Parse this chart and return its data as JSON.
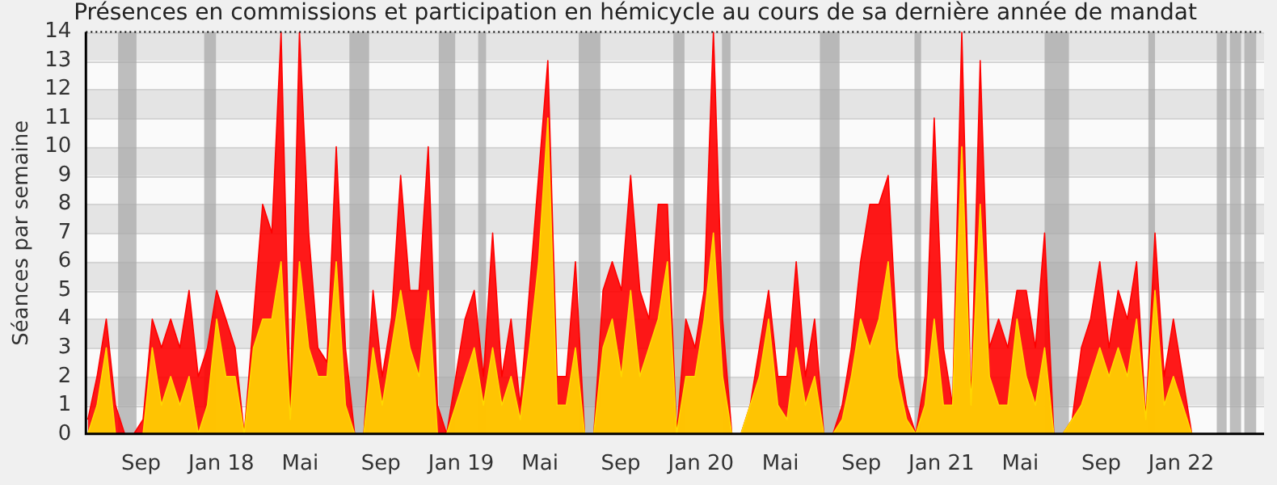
{
  "chart_data": {
    "type": "area",
    "title": "Présences en commissions et participation en hémicycle au cours de sa dernière année de mandat",
    "ylabel": "Séances par semaine",
    "x": [
      "2017-06-12",
      "2017-06-26",
      "2017-07-10",
      "2017-07-24",
      "2017-08-07",
      "2017-08-21",
      "2017-09-04",
      "2017-09-18",
      "2017-10-02",
      "2017-10-16",
      "2017-10-30",
      "2017-11-13",
      "2017-11-27",
      "2017-12-11",
      "2017-12-25",
      "2018-01-08",
      "2018-01-22",
      "2018-02-05",
      "2018-02-19",
      "2018-03-05",
      "2018-03-19",
      "2018-04-02",
      "2018-04-16",
      "2018-04-30",
      "2018-05-14",
      "2018-05-28",
      "2018-06-11",
      "2018-06-25",
      "2018-07-09",
      "2018-07-23",
      "2018-08-06",
      "2018-08-20",
      "2018-09-03",
      "2018-09-17",
      "2018-10-01",
      "2018-10-15",
      "2018-10-29",
      "2018-11-12",
      "2018-11-26",
      "2018-12-10",
      "2018-12-24",
      "2019-01-07",
      "2019-01-21",
      "2019-02-04",
      "2019-02-18",
      "2019-03-04",
      "2019-03-18",
      "2019-04-01",
      "2019-04-15",
      "2019-04-29",
      "2019-05-13",
      "2019-05-27",
      "2019-06-10",
      "2019-06-24",
      "2019-07-08",
      "2019-07-22",
      "2019-08-05",
      "2019-08-19",
      "2019-09-02",
      "2019-09-16",
      "2019-09-30",
      "2019-10-14",
      "2019-10-28",
      "2019-11-11",
      "2019-11-25",
      "2019-12-09",
      "2019-12-23",
      "2020-01-06",
      "2020-01-20",
      "2020-02-03",
      "2020-02-17",
      "2020-03-02",
      "2020-03-16",
      "2020-03-30",
      "2020-04-13",
      "2020-04-27",
      "2020-05-11",
      "2020-05-25",
      "2020-06-08",
      "2020-06-22",
      "2020-07-06",
      "2020-07-20",
      "2020-08-03",
      "2020-08-17",
      "2020-08-31",
      "2020-09-14",
      "2020-09-28",
      "2020-10-12",
      "2020-10-26",
      "2020-11-09",
      "2020-11-23",
      "2020-12-07",
      "2020-12-21",
      "2021-01-04",
      "2021-01-18",
      "2021-02-01",
      "2021-02-15",
      "2021-03-01",
      "2021-03-15",
      "2021-03-29",
      "2021-04-12",
      "2021-04-26",
      "2021-05-10",
      "2021-05-24",
      "2021-06-07",
      "2021-06-21",
      "2021-07-05",
      "2021-07-19",
      "2021-08-02",
      "2021-08-16",
      "2021-08-30",
      "2021-09-13",
      "2021-09-27",
      "2021-10-11",
      "2021-10-25",
      "2021-11-08",
      "2021-11-22",
      "2021-12-06",
      "2021-12-20",
      "2022-01-03",
      "2022-01-17",
      "2022-01-31"
    ],
    "series": [
      {
        "color": "#ff0000",
        "values": [
          0.5,
          2,
          4,
          1,
          0,
          0,
          0.5,
          4,
          3,
          4,
          3,
          5,
          2,
          3,
          5,
          4,
          3,
          0,
          4,
          8,
          7,
          14,
          1,
          14,
          7,
          3,
          2.5,
          10,
          3,
          0,
          0,
          5,
          2,
          4,
          9,
          5,
          5,
          10,
          1,
          0,
          2,
          4,
          5,
          2,
          7,
          2,
          4,
          1,
          5,
          9,
          13,
          2,
          2,
          6,
          0,
          0,
          5,
          6,
          5,
          9,
          5,
          4,
          8,
          8,
          0,
          4,
          3,
          5,
          14,
          4,
          0,
          0,
          1,
          3,
          5,
          2,
          2,
          6,
          2,
          4,
          0,
          0,
          1,
          3,
          6,
          8,
          8,
          9,
          3,
          1,
          0,
          2,
          11,
          3,
          1,
          14,
          1,
          13,
          3,
          4,
          3,
          5,
          5,
          3,
          7,
          0,
          0,
          0.5,
          3,
          4,
          6,
          3,
          5,
          4,
          6,
          0.5,
          7,
          2,
          4,
          2,
          0,
          0
        ]
      },
      {
        "color": "#ffd700",
        "values": [
          0,
          1,
          3,
          0,
          0,
          0,
          0,
          3,
          1,
          2,
          1,
          2,
          0,
          1,
          4,
          2,
          2,
          0,
          3,
          4,
          4,
          6,
          0.5,
          6,
          3,
          2,
          2,
          6,
          1,
          0,
          0,
          3,
          1,
          3,
          5,
          3,
          2,
          5,
          0,
          0,
          1,
          2,
          3,
          1,
          3,
          1,
          2,
          0.5,
          3,
          6,
          11,
          1,
          1,
          3,
          0,
          0,
          3,
          4,
          2,
          5,
          2,
          3,
          4,
          6,
          0,
          2,
          2,
          4,
          7,
          2,
          0,
          0,
          1,
          2,
          4,
          1,
          0.5,
          3,
          1,
          2,
          0,
          0,
          0.5,
          2,
          4,
          3,
          4,
          6,
          2,
          0.5,
          0,
          1,
          4,
          1,
          1,
          10,
          1,
          8,
          2,
          1,
          1,
          4,
          2,
          1,
          3,
          0,
          0,
          0.5,
          1,
          2,
          3,
          2,
          3,
          2,
          4,
          0.5,
          5,
          1,
          2,
          1,
          0,
          0
        ]
      }
    ],
    "xlim": [
      "2017-06-09",
      "2022-05-07"
    ],
    "xticks": [
      {
        "value": "2017-09-01",
        "label": "Sep"
      },
      {
        "value": "2018-01-01",
        "label": "Jan 18"
      },
      {
        "value": "2018-05-01",
        "label": "Mai"
      },
      {
        "value": "2018-09-01",
        "label": "Sep"
      },
      {
        "value": "2019-01-01",
        "label": "Jan 19"
      },
      {
        "value": "2019-05-01",
        "label": "Mai"
      },
      {
        "value": "2019-09-01",
        "label": "Sep"
      },
      {
        "value": "2020-01-01",
        "label": "Jan 20"
      },
      {
        "value": "2020-05-01",
        "label": "Mai"
      },
      {
        "value": "2020-09-01",
        "label": "Sep"
      },
      {
        "value": "2021-01-01",
        "label": "Jan 21"
      },
      {
        "value": "2021-05-01",
        "label": "Mai"
      },
      {
        "value": "2021-09-01",
        "label": "Sep"
      },
      {
        "value": "2022-01-01",
        "label": "Jan 22"
      }
    ],
    "ylim": [
      0,
      14
    ],
    "yticks": [
      0,
      1,
      2,
      3,
      4,
      5,
      6,
      7,
      8,
      9,
      10,
      11,
      12,
      13,
      14
    ],
    "bands": [
      {
        "axis": "x",
        "from": "2017-07-28",
        "to": "2017-08-25",
        "color": "#aaaaaa"
      },
      {
        "axis": "x",
        "from": "2017-12-06",
        "to": "2017-12-24",
        "color": "#aaaaaa"
      },
      {
        "axis": "x",
        "from": "2018-07-15",
        "to": "2018-08-14",
        "color": "#aaaaaa"
      },
      {
        "axis": "x",
        "from": "2018-11-28",
        "to": "2018-12-23",
        "color": "#aaaaaa"
      },
      {
        "axis": "x",
        "from": "2019-01-27",
        "to": "2019-02-08",
        "color": "#aaaaaa"
      },
      {
        "axis": "x",
        "from": "2019-06-29",
        "to": "2019-08-01",
        "color": "#aaaaaa"
      },
      {
        "axis": "x",
        "from": "2019-11-20",
        "to": "2019-12-07",
        "color": "#aaaaaa"
      },
      {
        "axis": "x",
        "from": "2020-02-02",
        "to": "2020-02-15",
        "color": "#aaaaaa"
      },
      {
        "axis": "x",
        "from": "2020-06-30",
        "to": "2020-07-30",
        "color": "#aaaaaa"
      },
      {
        "axis": "x",
        "from": "2020-11-21",
        "to": "2020-12-01",
        "color": "#aaaaaa"
      },
      {
        "axis": "x",
        "from": "2021-06-07",
        "to": "2021-07-14",
        "color": "#aaaaaa"
      },
      {
        "axis": "x",
        "from": "2021-11-12",
        "to": "2021-11-22",
        "color": "#aaaaaa"
      },
      {
        "axis": "x",
        "from": "2022-02-24",
        "to": "2022-03-11",
        "color": "#aaaaaa"
      },
      {
        "axis": "x",
        "from": "2022-03-16",
        "to": "2022-04-02",
        "color": "#aaaaaa"
      },
      {
        "axis": "x",
        "from": "2022-04-07",
        "to": "2022-04-25",
        "color": "#aaaaaa"
      }
    ],
    "grid": "y",
    "legend": false,
    "marker": "none"
  }
}
